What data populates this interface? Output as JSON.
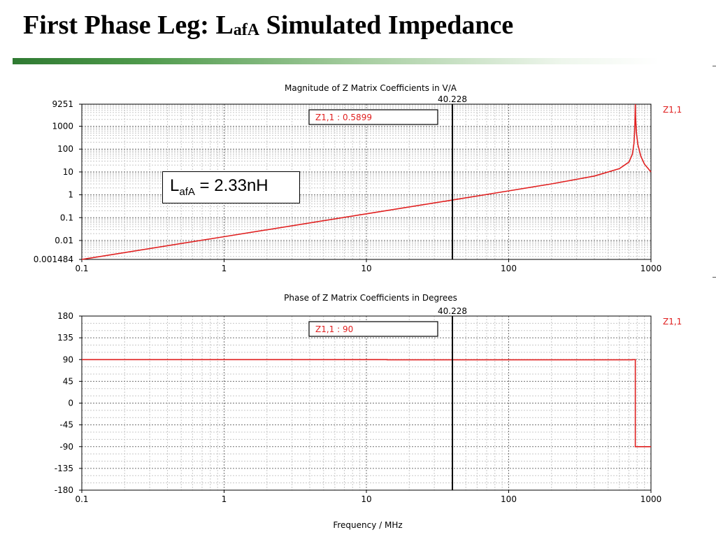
{
  "slide": {
    "title_main": "First Phase Leg: L",
    "title_sub": "afA",
    "title_rest": " Simulated Impedance",
    "callout_main": "L",
    "callout_sub": "afA",
    "callout_rest": " = 2.33nH"
  },
  "colors": {
    "series": "#e02020",
    "marker": "#000000",
    "grid": "#c8c8c8",
    "title_bar": "#2f7a32"
  },
  "chart_data": [
    {
      "type": "line",
      "title": "Magnitude of Z Matrix Coefficients in V/A",
      "x_scale": "log",
      "y_scale": "log",
      "xlim": [
        0.1,
        1000
      ],
      "ylim": [
        0.001484,
        9251
      ],
      "x_ticks": [
        "0.1",
        "1",
        "10",
        "100",
        "1000"
      ],
      "y_ticks": [
        "0.001484",
        "0.01",
        "0.1",
        "1",
        "10",
        "100",
        "1000",
        "9251"
      ],
      "grid": true,
      "series": [
        {
          "name": "Z1,1",
          "x": [
            0.1,
            1,
            10,
            40.228,
            100,
            200,
            400,
            600,
            700,
            740,
            760,
            770,
            776,
            780,
            790,
            810,
            850,
            900,
            1000
          ],
          "y": [
            0.00148,
            0.0147,
            0.147,
            0.5899,
            1.48,
            3.0,
            6.6,
            14,
            27,
            60,
            180,
            900,
            9251,
            2500,
            520,
            150,
            48,
            22,
            10
          ]
        }
      ],
      "marker": {
        "x": 40.228,
        "label": "40.228",
        "readout": "Z1,1 : 0.5899"
      }
    },
    {
      "type": "line",
      "title": "Phase of Z Matrix Coefficients in Degrees",
      "xlabel": "Frequency / MHz",
      "x_scale": "log",
      "xlim": [
        0.1,
        1000
      ],
      "ylim": [
        -180,
        180
      ],
      "x_ticks": [
        "0.1",
        "1",
        "10",
        "100",
        "1000"
      ],
      "y_ticks": [
        "180",
        "135",
        "90",
        "45",
        "0",
        "-45",
        "-90",
        "-135",
        "-180"
      ],
      "grid": true,
      "series": [
        {
          "name": "Z1,1",
          "x": [
            0.1,
            14,
            14,
            740,
            740,
            776,
            776,
            1000
          ],
          "y": [
            90,
            90,
            89.5,
            89.5,
            90,
            90,
            -90,
            -90
          ]
        }
      ],
      "marker": {
        "x": 40.228,
        "label": "40.228",
        "readout": "Z1,1 : 90"
      }
    }
  ]
}
